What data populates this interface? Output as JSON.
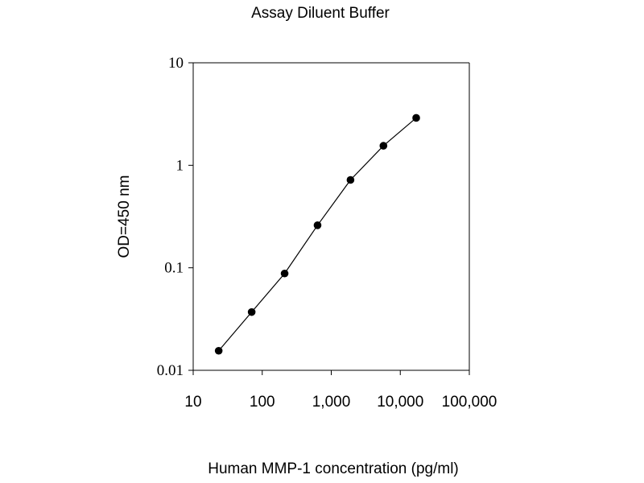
{
  "chart_data": {
    "type": "scatter",
    "title": "Assay Diluent Buffer",
    "xlabel": "Human MMP-1 concentration (pg/ml)",
    "ylabel": "OD=450 nm",
    "x_scale": "log",
    "y_scale": "log",
    "xlim": [
      10,
      100000
    ],
    "ylim": [
      0.01,
      10
    ],
    "x_ticks": [
      10,
      100,
      1000,
      10000,
      100000
    ],
    "x_tick_labels": [
      "10",
      "100",
      "1,000",
      "10,000",
      "100,000"
    ],
    "y_ticks": [
      0.01,
      0.1,
      1,
      10
    ],
    "y_tick_labels": [
      "0.01",
      "0.1",
      "1",
      "10"
    ],
    "grid": false,
    "legend": "none",
    "marker_color": "#000000",
    "line_color": "#000000",
    "series": [
      {
        "points": [
          [
            23.4,
            0.0155
          ],
          [
            70.3,
            0.037
          ],
          [
            211,
            0.088
          ],
          [
            633,
            0.26
          ],
          [
            1900,
            0.72
          ],
          [
            5700,
            1.55
          ],
          [
            17000,
            2.9
          ]
        ]
      }
    ]
  }
}
